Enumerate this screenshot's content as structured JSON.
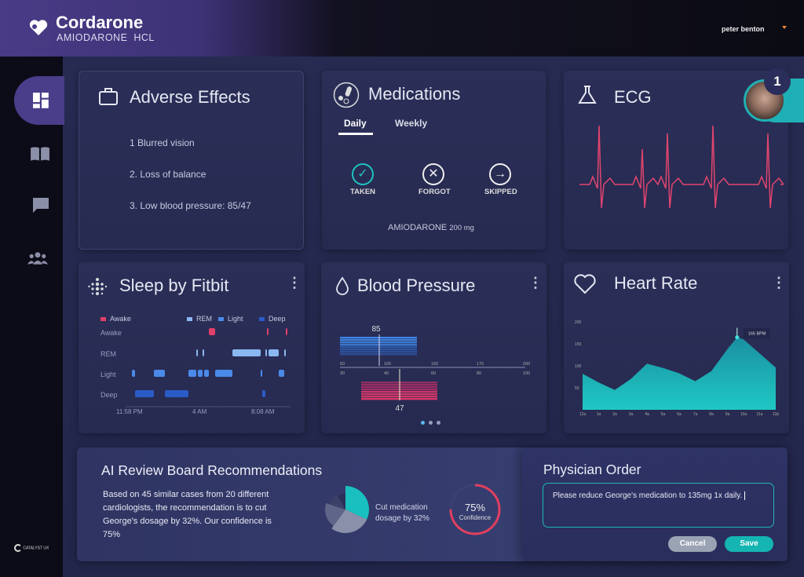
{
  "header": {
    "app_title": "Cordarone",
    "app_subtitle": "AMIODARONE  HCL",
    "user_name": "peter benton",
    "notification_count": "1"
  },
  "sidebar": {
    "items": [
      {
        "icon": "dashboard-icon",
        "active": true
      },
      {
        "icon": "book-icon"
      },
      {
        "icon": "chat-icon"
      },
      {
        "icon": "people-icon"
      }
    ],
    "brand": "CATALYST UX"
  },
  "adverse_effects": {
    "title": "Adverse Effects",
    "items": [
      "1 Blurred vision",
      "2. Loss of balance",
      "3. Low blood pressure: 85/47"
    ]
  },
  "medications": {
    "title": "Medications",
    "tabs": [
      "Daily",
      "Weekly"
    ],
    "active_tab": "Daily",
    "actions": [
      "TAKEN",
      "FORGOT",
      "SKIPPED"
    ],
    "drug_name": "AMIODARONE",
    "dose": "200 mg"
  },
  "ecg": {
    "title": "ECG"
  },
  "sleep": {
    "title": "Sleep by Fitbit",
    "legend": [
      "Awake",
      "REM",
      "Light",
      "Deep"
    ],
    "stages": [
      "Awake",
      "REM",
      "Light",
      "Deep"
    ],
    "time_labels": [
      "11:58 PM",
      "4 AM",
      "8:08 AM"
    ],
    "colors": {
      "Awake": "#e0406a",
      "REM": "#8ab8f0",
      "Light": "#4a8ae8",
      "Deep": "#2a5cc8"
    }
  },
  "blood_pressure": {
    "title": "Blood Pressure",
    "systolic": 85,
    "diastolic": 47,
    "systolic_label": "85",
    "diastolic_label": "47",
    "top_axis": [
      "60",
      "105",
      "150",
      "175",
      "200"
    ],
    "bottom_axis": [
      "30",
      "40",
      "60",
      "80",
      "100"
    ],
    "page_count": 3,
    "active_page": 1
  },
  "heart_rate": {
    "title": "Heart Rate",
    "peak_label": "165 BPM",
    "y_ticks": [
      "200",
      "150",
      "100",
      "50"
    ],
    "x_labels": [
      "12a",
      "1a",
      "2a",
      "3a",
      "4a",
      "5a",
      "6a",
      "7a",
      "8a",
      "9a",
      "10a",
      "11a",
      "12p"
    ]
  },
  "chart_data": {
    "type": "area",
    "title": "Heart Rate",
    "x": [
      "12a",
      "1a",
      "2a",
      "3a",
      "4a",
      "5a",
      "6a",
      "7a",
      "8a",
      "9a",
      "10a",
      "11a",
      "12p"
    ],
    "values": [
      82,
      62,
      45,
      70,
      105,
      95,
      83,
      65,
      88,
      138,
      160,
      128,
      96
    ],
    "peak": 165,
    "ylim": [
      0,
      200
    ]
  },
  "ai_review": {
    "title": "AI Review Board Recommendations",
    "body": "Based on 45 similar cases from 20 different cardiologists, the recommendation is to cut George's dosage by 32%. Our confidence is 75%",
    "pie_label": "Cut medication dosage by 32%",
    "pie_slices": [
      32,
      28,
      20,
      12,
      8
    ],
    "confidence_value": "75%",
    "confidence_label": "Confidence",
    "confidence": 0.75
  },
  "physician_order": {
    "title": "Physician Order",
    "text": "Please reduce George's medication to 135mg 1x daily.",
    "cancel_label": "Cancel",
    "save_label": "Save"
  }
}
